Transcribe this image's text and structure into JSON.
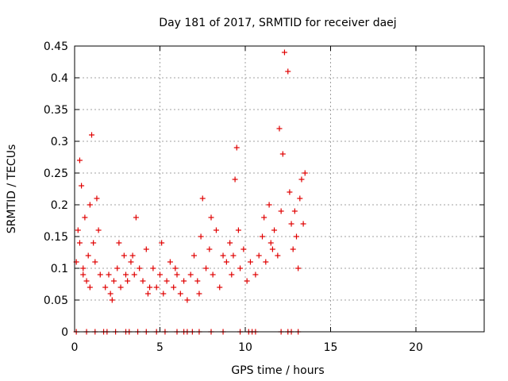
{
  "chart_data": {
    "type": "scatter",
    "title": "Day 181 of 2017, SRMTID for receiver daej",
    "xlabel": "GPS time / hours",
    "ylabel": "SRMTID / TECUs",
    "xlim": [
      0,
      24
    ],
    "ylim": [
      0,
      0.45
    ],
    "xticks": [
      0,
      5,
      10,
      15,
      20
    ],
    "xtick_labels": [
      "0",
      "5",
      "10",
      "15",
      "20"
    ],
    "yticks": [
      0,
      0.05,
      0.1,
      0.15,
      0.2,
      0.25,
      0.3,
      0.35,
      0.4,
      0.45
    ],
    "ytick_labels": [
      "0",
      "0.05",
      "0.1",
      "0.15",
      "0.2",
      "0.25",
      "0.3",
      "0.35",
      "0.4",
      "0.45"
    ],
    "grid": true,
    "marker": "+",
    "color": "#e00000",
    "series": [
      {
        "name": "SRMTID",
        "x": [
          0.1,
          0.2,
          0.3,
          0.4,
          0.5,
          0.6,
          0.8,
          0.9,
          1.0,
          1.1,
          1.2,
          1.3,
          1.5,
          0.3,
          0.5,
          0.7,
          0.9,
          1.4,
          1.8,
          2.0,
          2.1,
          2.3,
          2.5,
          2.7,
          2.9,
          3.0,
          2.2,
          2.6,
          3.1,
          3.3,
          3.5,
          3.6,
          3.8,
          4.0,
          4.2,
          4.4,
          3.4,
          4.3,
          4.6,
          4.8,
          5.0,
          5.2,
          5.4,
          5.6,
          5.8,
          6.0,
          6.2,
          6.4,
          6.6,
          5.1,
          5.9,
          6.8,
          7.0,
          7.2,
          7.4,
          7.5,
          7.7,
          7.9,
          8.1,
          8.3,
          8.5,
          8.7,
          7.3,
          8.0,
          8.9,
          9.1,
          9.2,
          9.3,
          9.5,
          9.7,
          9.9,
          10.1,
          10.3,
          9.4,
          9.6,
          10.6,
          10.8,
          11.0,
          11.1,
          11.2,
          11.4,
          11.5,
          11.7,
          11.9,
          12.0,
          12.1,
          12.3,
          12.5,
          11.6,
          12.2,
          12.6,
          12.7,
          12.8,
          12.9,
          13.0,
          13.1,
          13.2,
          13.3,
          13.4,
          13.5
        ],
        "y": [
          0.11,
          0.16,
          0.14,
          0.23,
          0.09,
          0.18,
          0.12,
          0.07,
          0.31,
          0.14,
          0.11,
          0.21,
          0.09,
          0.27,
          0.1,
          0.08,
          0.2,
          0.16,
          0.07,
          0.09,
          0.06,
          0.08,
          0.1,
          0.07,
          0.12,
          0.09,
          0.05,
          0.14,
          0.08,
          0.11,
          0.09,
          0.18,
          0.1,
          0.08,
          0.13,
          0.07,
          0.12,
          0.06,
          0.1,
          0.07,
          0.09,
          0.06,
          0.08,
          0.11,
          0.07,
          0.09,
          0.06,
          0.08,
          0.05,
          0.14,
          0.1,
          0.09,
          0.12,
          0.08,
          0.15,
          0.21,
          0.1,
          0.13,
          0.09,
          0.16,
          0.07,
          0.12,
          0.06,
          0.18,
          0.11,
          0.14,
          0.09,
          0.12,
          0.29,
          0.1,
          0.13,
          0.08,
          0.11,
          0.24,
          0.16,
          0.09,
          0.12,
          0.15,
          0.18,
          0.11,
          0.2,
          0.14,
          0.16,
          0.12,
          0.32,
          0.19,
          0.44,
          0.41,
          0.13,
          0.28,
          0.22,
          0.17,
          0.13,
          0.19,
          0.15,
          0.1,
          0.21,
          0.24,
          0.17,
          0.25
        ],
        "x_zero": [
          0.1,
          0.7,
          1.2,
          1.7,
          1.9,
          2.4,
          3.0,
          3.2,
          3.7,
          4.2,
          4.8,
          5.3,
          6.0,
          6.4,
          6.6,
          6.9,
          7.3,
          8.0,
          8.7,
          9.7,
          10.2,
          10.4,
          10.6,
          12.1,
          12.5,
          12.7,
          13.1
        ]
      }
    ]
  }
}
